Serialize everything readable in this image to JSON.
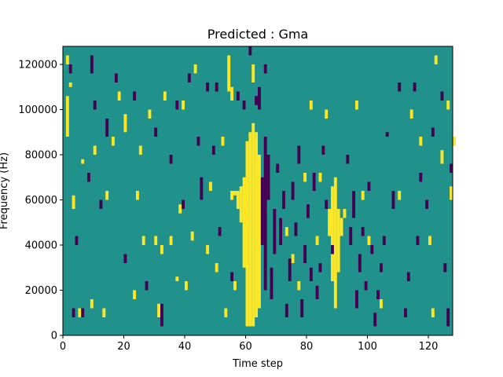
{
  "chart_data": {
    "type": "heatmap",
    "title": "Predicted : Gma",
    "xlabel": "Time step",
    "ylabel": "Frequency (Hz)",
    "xlim": [
      0,
      128
    ],
    "ylim": [
      0,
      128000
    ],
    "xticks": [
      0,
      20,
      40,
      60,
      80,
      100,
      120
    ],
    "yticks": [
      0,
      20000,
      40000,
      60000,
      80000,
      100000,
      120000
    ],
    "xtick_labels": [
      "0",
      "20",
      "40",
      "60",
      "80",
      "100",
      "120"
    ],
    "ytick_labels": [
      "0",
      "20000",
      "40000",
      "60000",
      "80000",
      "100000",
      "120000"
    ],
    "colormap": "viridis",
    "value_levels": [
      -1,
      0,
      1
    ],
    "level_colors": {
      "-1": "#440154",
      "0": "#21918c",
      "1": "#fde725"
    },
    "background_value": 0,
    "freq_bin_hz": 2000,
    "cells_high": [
      [
        60,
        4000,
        86000
      ],
      [
        61,
        4000,
        90000
      ],
      [
        62,
        4000,
        94000
      ],
      [
        63,
        8000,
        90000
      ],
      [
        64,
        12000,
        80000
      ],
      [
        59,
        30000,
        70000
      ],
      [
        58,
        50000,
        66000
      ],
      [
        57,
        56000,
        64000
      ],
      [
        56,
        62000,
        64000
      ],
      [
        88,
        24000,
        66000
      ],
      [
        89,
        12000,
        70000
      ],
      [
        90,
        28000,
        56000
      ],
      [
        87,
        44000,
        56000
      ],
      [
        91,
        44000,
        52000
      ],
      [
        92,
        52000,
        56000
      ],
      [
        54,
        108000,
        124000
      ],
      [
        55,
        104000,
        110000
      ],
      [
        62,
        112000,
        120000
      ],
      [
        1,
        88000,
        106000
      ],
      [
        1,
        120000,
        124000
      ],
      [
        2,
        110000,
        112000
      ],
      [
        3,
        56000,
        62000
      ],
      [
        5,
        8000,
        12000
      ],
      [
        6,
        76000,
        78000
      ],
      [
        9,
        12000,
        16000
      ],
      [
        10,
        80000,
        84000
      ],
      [
        13,
        8000,
        12000
      ],
      [
        14,
        60000,
        64000
      ],
      [
        16,
        84000,
        88000
      ],
      [
        18,
        104000,
        108000
      ],
      [
        20,
        90000,
        98000
      ],
      [
        23,
        16000,
        20000
      ],
      [
        24,
        60000,
        64000
      ],
      [
        25,
        80000,
        84000
      ],
      [
        26,
        40000,
        44000
      ],
      [
        28,
        96000,
        100000
      ],
      [
        30,
        40000,
        44000
      ],
      [
        31,
        8000,
        14000
      ],
      [
        32,
        36000,
        40000
      ],
      [
        33,
        104000,
        108000
      ],
      [
        35,
        40000,
        44000
      ],
      [
        37,
        24000,
        26000
      ],
      [
        38,
        54000,
        58000
      ],
      [
        39,
        100000,
        104000
      ],
      [
        40,
        20000,
        24000
      ],
      [
        42,
        42000,
        46000
      ],
      [
        43,
        116000,
        120000
      ],
      [
        47,
        36000,
        40000
      ],
      [
        48,
        64000,
        68000
      ],
      [
        50,
        28000,
        32000
      ],
      [
        52,
        84000,
        88000
      ],
      [
        53,
        8000,
        12000
      ],
      [
        55,
        60000,
        64000
      ],
      [
        56,
        20000,
        24000
      ],
      [
        73,
        44000,
        48000
      ],
      [
        75,
        32000,
        36000
      ],
      [
        77,
        20000,
        24000
      ],
      [
        79,
        68000,
        72000
      ],
      [
        81,
        100000,
        104000
      ],
      [
        83,
        40000,
        44000
      ],
      [
        84,
        68000,
        72000
      ],
      [
        86,
        96000,
        100000
      ],
      [
        96,
        100000,
        104000
      ],
      [
        98,
        60000,
        64000
      ],
      [
        100,
        40000,
        44000
      ],
      [
        104,
        12000,
        16000
      ],
      [
        110,
        60000,
        64000
      ],
      [
        114,
        96000,
        100000
      ],
      [
        117,
        84000,
        88000
      ],
      [
        120,
        40000,
        44000
      ],
      [
        121,
        8000,
        12000
      ],
      [
        122,
        120000,
        124000
      ],
      [
        124,
        76000,
        82000
      ],
      [
        126,
        100000,
        104000
      ],
      [
        127,
        60000,
        66000
      ],
      [
        128,
        84000,
        88000
      ]
    ],
    "cells_low": [
      [
        65,
        40000,
        70000
      ],
      [
        66,
        20000,
        88000
      ],
      [
        67,
        60000,
        80000
      ],
      [
        68,
        16000,
        30000
      ],
      [
        69,
        36000,
        56000
      ],
      [
        70,
        72000,
        76000
      ],
      [
        71,
        40000,
        52000
      ],
      [
        72,
        56000,
        64000
      ],
      [
        73,
        8000,
        14000
      ],
      [
        74,
        24000,
        34000
      ],
      [
        75,
        60000,
        68000
      ],
      [
        76,
        44000,
        50000
      ],
      [
        77,
        76000,
        84000
      ],
      [
        78,
        8000,
        16000
      ],
      [
        79,
        32000,
        40000
      ],
      [
        80,
        52000,
        58000
      ],
      [
        81,
        24000,
        30000
      ],
      [
        82,
        64000,
        72000
      ],
      [
        83,
        16000,
        22000
      ],
      [
        84,
        28000,
        32000
      ],
      [
        85,
        80000,
        84000
      ],
      [
        86,
        56000,
        60000
      ],
      [
        88,
        36000,
        40000
      ],
      [
        93,
        76000,
        80000
      ],
      [
        94,
        40000,
        48000
      ],
      [
        95,
        52000,
        64000
      ],
      [
        96,
        12000,
        20000
      ],
      [
        97,
        28000,
        36000
      ],
      [
        98,
        44000,
        48000
      ],
      [
        99,
        20000,
        24000
      ],
      [
        100,
        64000,
        68000
      ],
      [
        101,
        36000,
        40000
      ],
      [
        102,
        4000,
        10000
      ],
      [
        103,
        16000,
        20000
      ],
      [
        104,
        28000,
        32000
      ],
      [
        105,
        40000,
        44000
      ],
      [
        106,
        88000,
        90000
      ],
      [
        108,
        56000,
        64000
      ],
      [
        110,
        108000,
        112000
      ],
      [
        64,
        100000,
        110000
      ],
      [
        63,
        102000,
        106000
      ],
      [
        61,
        124000,
        128000
      ],
      [
        66,
        116000,
        120000
      ],
      [
        3,
        8000,
        12000
      ],
      [
        2,
        116000,
        120000
      ],
      [
        4,
        40000,
        44000
      ],
      [
        6,
        8000,
        12000
      ],
      [
        8,
        68000,
        72000
      ],
      [
        9,
        116000,
        124000
      ],
      [
        10,
        100000,
        104000
      ],
      [
        12,
        56000,
        60000
      ],
      [
        14,
        88000,
        96000
      ],
      [
        17,
        112000,
        116000
      ],
      [
        20,
        32000,
        36000
      ],
      [
        23,
        104000,
        108000
      ],
      [
        27,
        20000,
        24000
      ],
      [
        30,
        88000,
        92000
      ],
      [
        32,
        4000,
        14000
      ],
      [
        35,
        76000,
        80000
      ],
      [
        37,
        100000,
        104000
      ],
      [
        39,
        56000,
        60000
      ],
      [
        41,
        112000,
        116000
      ],
      [
        44,
        84000,
        88000
      ],
      [
        45,
        60000,
        70000
      ],
      [
        47,
        108000,
        112000
      ],
      [
        49,
        80000,
        84000
      ],
      [
        50,
        108000,
        112000
      ],
      [
        51,
        44000,
        48000
      ],
      [
        55,
        24000,
        28000
      ],
      [
        57,
        104000,
        108000
      ],
      [
        59,
        100000,
        104000
      ],
      [
        113,
        24000,
        28000
      ],
      [
        115,
        108000,
        112000
      ],
      [
        117,
        68000,
        72000
      ],
      [
        119,
        56000,
        60000
      ],
      [
        121,
        88000,
        92000
      ],
      [
        124,
        104000,
        108000
      ],
      [
        125,
        28000,
        32000
      ],
      [
        126,
        4000,
        12000
      ],
      [
        127,
        72000,
        76000
      ],
      [
        116,
        40000,
        44000
      ],
      [
        112,
        8000,
        12000
      ]
    ]
  }
}
